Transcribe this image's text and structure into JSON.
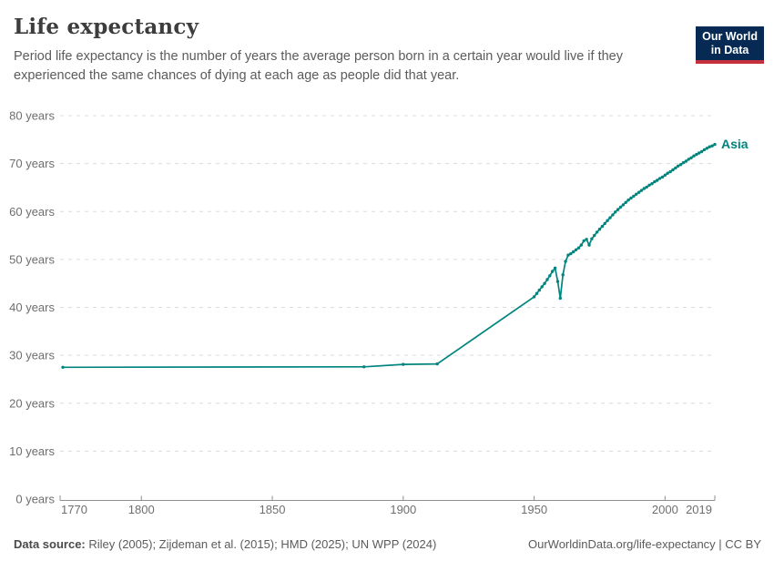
{
  "header": {
    "title": "Life expectancy",
    "subtitle": "Period life expectancy is the number of years the average person born in a certain year would live if they experienced the same chances of dying at each age as people did that year.",
    "logo": {
      "line1": "Our World",
      "line2": "in Data"
    }
  },
  "footer": {
    "source_label": "Data source:",
    "source_text": " Riley (2005); Zijdeman et al. (2015); HMD (2025); UN WPP (2024)",
    "link_text": "OurWorldinData.org/life-expectancy | CC BY"
  },
  "colors": {
    "series": "#00847E",
    "grid": "#dcdcdc",
    "axis": "#8f8f8f",
    "tick_text": "#6e6e6e",
    "title_text": "#3d3d3d",
    "subtitle_text": "#5b5b5b",
    "logo_bg": "#062a53",
    "logo_accent": "#c5303e"
  },
  "chart_data": {
    "type": "line",
    "title": "Life expectancy",
    "xlabel": "",
    "ylabel": "",
    "xlim": [
      1770,
      2019
    ],
    "ylim": [
      0,
      80
    ],
    "x_ticks": [
      1770,
      1800,
      1850,
      1900,
      1950,
      2000,
      2019
    ],
    "y_ticks": [
      0,
      10,
      20,
      30,
      40,
      50,
      60,
      70,
      80
    ],
    "y_tick_suffix": " years",
    "grid": "horizontal-dashed",
    "legend": "end-of-line-label",
    "series": [
      {
        "name": "Asia",
        "color": "#00847E",
        "points": [
          [
            1770,
            27.5
          ],
          [
            1885,
            27.6
          ],
          [
            1900,
            28.1
          ],
          [
            1913,
            28.2
          ],
          [
            1950,
            42.2
          ],
          [
            1951,
            42.9
          ],
          [
            1952,
            43.6
          ],
          [
            1953,
            44.3
          ],
          [
            1954,
            45.0
          ],
          [
            1955,
            45.8
          ],
          [
            1956,
            46.6
          ],
          [
            1957,
            47.5
          ],
          [
            1958,
            48.2
          ],
          [
            1959,
            45.4
          ],
          [
            1960,
            41.9
          ],
          [
            1961,
            46.8
          ],
          [
            1962,
            49.6
          ],
          [
            1963,
            50.9
          ],
          [
            1964,
            51.2
          ],
          [
            1965,
            51.6
          ],
          [
            1966,
            52.0
          ],
          [
            1967,
            52.4
          ],
          [
            1968,
            53.0
          ],
          [
            1969,
            53.9
          ],
          [
            1970,
            54.2
          ],
          [
            1971,
            53.0
          ],
          [
            1972,
            54.3
          ],
          [
            1973,
            55.0
          ],
          [
            1974,
            55.7
          ],
          [
            1975,
            56.3
          ],
          [
            1976,
            56.9
          ],
          [
            1977,
            57.5
          ],
          [
            1978,
            58.1
          ],
          [
            1979,
            58.7
          ],
          [
            1980,
            59.3
          ],
          [
            1981,
            59.9
          ],
          [
            1982,
            60.4
          ],
          [
            1983,
            60.9
          ],
          [
            1984,
            61.4
          ],
          [
            1985,
            61.9
          ],
          [
            1986,
            62.4
          ],
          [
            1987,
            62.8
          ],
          [
            1988,
            63.2
          ],
          [
            1989,
            63.6
          ],
          [
            1990,
            64.0
          ],
          [
            1991,
            64.4
          ],
          [
            1992,
            64.8
          ],
          [
            1993,
            65.1
          ],
          [
            1994,
            65.5
          ],
          [
            1995,
            65.8
          ],
          [
            1996,
            66.2
          ],
          [
            1997,
            66.5
          ],
          [
            1998,
            66.9
          ],
          [
            1999,
            67.2
          ],
          [
            2000,
            67.6
          ],
          [
            2001,
            68.0
          ],
          [
            2002,
            68.3
          ],
          [
            2003,
            68.7
          ],
          [
            2004,
            69.1
          ],
          [
            2005,
            69.5
          ],
          [
            2006,
            69.8
          ],
          [
            2007,
            70.2
          ],
          [
            2008,
            70.5
          ],
          [
            2009,
            70.9
          ],
          [
            2010,
            71.2
          ],
          [
            2011,
            71.6
          ],
          [
            2012,
            71.9
          ],
          [
            2013,
            72.2
          ],
          [
            2014,
            72.5
          ],
          [
            2015,
            72.9
          ],
          [
            2016,
            73.2
          ],
          [
            2017,
            73.5
          ],
          [
            2018,
            73.7
          ],
          [
            2019,
            74.0
          ]
        ]
      }
    ]
  }
}
